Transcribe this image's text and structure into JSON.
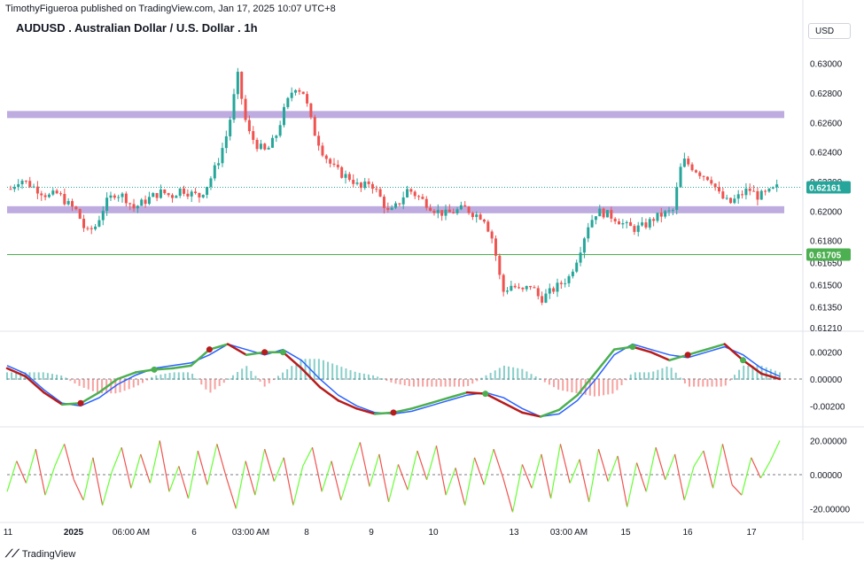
{
  "header": {
    "publisher": "TimothyFigueroa published on TradingView.com, Jan 17, 2025 10:07 UTC+8",
    "title": "AUDUSD . Australian Dollar / U.S. Dollar . 1h",
    "currency": "USD"
  },
  "footer": {
    "brand": "TradingView"
  },
  "colors": {
    "up": "#26a69a",
    "down": "#ef5350",
    "zone": "#b39ddb",
    "support_line": "#4caf50",
    "macd_fast": "#2962ff",
    "macd_signal_up": "#4caf50",
    "macd_signal_down": "#b71c1c",
    "osc_up": "#66ff33",
    "osc_down": "#ef5350",
    "price_label": "#26a69a"
  },
  "chart_data": [
    {
      "type": "candlestick",
      "pane": "price",
      "ylim": [
        0.6121,
        0.631
      ],
      "y_ticks": [
        "0.63000",
        "0.62800",
        "0.62600",
        "0.62400",
        "0.62200",
        "0.62000",
        "0.61800",
        "0.61650",
        "0.61500",
        "0.61350",
        "0.61210"
      ],
      "x_ticks": [
        "11",
        "2025",
        "06:00 AM",
        "6",
        "03:00 AM",
        "8",
        "9",
        "10",
        "13",
        "03:00 AM",
        "15",
        "16",
        "17"
      ],
      "close_path": [
        0.6215,
        0.6222,
        0.6218,
        0.6214,
        0.621,
        0.6212,
        0.6205,
        0.62,
        0.6185,
        0.619,
        0.6205,
        0.6212,
        0.621,
        0.6202,
        0.6206,
        0.621,
        0.6213,
        0.621,
        0.6215,
        0.6212,
        0.621,
        0.622,
        0.6235,
        0.6255,
        0.6292,
        0.6255,
        0.6245,
        0.624,
        0.625,
        0.627,
        0.6285,
        0.628,
        0.6255,
        0.624,
        0.623,
        0.6225,
        0.6222,
        0.6215,
        0.622,
        0.621,
        0.6198,
        0.6205,
        0.6215,
        0.621,
        0.6205,
        0.62,
        0.6198,
        0.62,
        0.6202,
        0.6198,
        0.6196,
        0.618,
        0.6145,
        0.615,
        0.6145,
        0.615,
        0.614,
        0.6145,
        0.615,
        0.6155,
        0.617,
        0.619,
        0.62,
        0.6198,
        0.6195,
        0.619,
        0.6188,
        0.619,
        0.6195,
        0.6198,
        0.62,
        0.6235,
        0.623,
        0.6225,
        0.6222,
        0.621,
        0.6205,
        0.621,
        0.6215,
        0.621,
        0.6212,
        0.6216
      ],
      "zones": [
        {
          "low": 0.6263,
          "high": 0.6266
        },
        {
          "low": 0.61985,
          "high": 0.62015
        }
      ],
      "lines": [
        {
          "value": 0.62161,
          "label": "0.62161",
          "style": "dotted"
        },
        {
          "value": 0.61705,
          "label": "0.61705",
          "style": "solid"
        }
      ],
      "last_price": 0.62161
    },
    {
      "type": "line",
      "pane": "macd",
      "ylim": [
        -0.0033,
        0.0033
      ],
      "y_ticks": [
        "0.00200",
        "0.00000",
        "-0.00200"
      ],
      "series": [
        {
          "values": [
            0.001,
            0.0004,
            -0.0008,
            -0.0018,
            -0.002,
            -0.0014,
            -0.0004,
            0.0003,
            0.0008,
            0.001,
            0.0012,
            0.0018,
            0.0026,
            0.0022,
            0.0018,
            0.0022,
            0.0014,
            0.0,
            -0.0012,
            -0.002,
            -0.0025,
            -0.0026,
            -0.0024,
            -0.002,
            -0.0016,
            -0.0012,
            -0.001,
            -0.0014,
            -0.0022,
            -0.0028,
            -0.0026,
            -0.0016,
            0.0,
            0.0018,
            0.0026,
            0.0022,
            0.0018,
            0.0016,
            0.002,
            0.0024,
            0.0018,
            0.0008,
            0.0002
          ]
        },
        {
          "values": [
            0.0008,
            0.0002,
            -0.001,
            -0.0019,
            -0.0018,
            -0.001,
            0.0,
            0.0005,
            0.0007,
            0.0008,
            0.001,
            0.0022,
            0.0026,
            0.0018,
            0.002,
            0.002,
            0.0008,
            -0.0006,
            -0.0016,
            -0.0022,
            -0.0026,
            -0.0025,
            -0.0022,
            -0.0018,
            -0.0014,
            -0.001,
            -0.0011,
            -0.0018,
            -0.0025,
            -0.0028,
            -0.0023,
            -0.0012,
            0.0005,
            0.0022,
            0.0024,
            0.002,
            0.0014,
            0.0018,
            0.0022,
            0.0026,
            0.0014,
            0.0004,
            0.0
          ]
        }
      ]
    },
    {
      "type": "line",
      "pane": "oscillator",
      "ylim": [
        -26,
        26
      ],
      "y_ticks": [
        "20.00000",
        "0.00000",
        "-20.00000"
      ],
      "series": [
        {
          "values": [
            -10,
            8,
            -5,
            15,
            -12,
            5,
            18,
            -3,
            -15,
            10,
            -18,
            2,
            16,
            -8,
            12,
            -5,
            20,
            -10,
            5,
            -14,
            14,
            -6,
            18,
            -2,
            -20,
            8,
            -12,
            15,
            -4,
            10,
            -18,
            5,
            16,
            -10,
            8,
            -15,
            3,
            19,
            -7,
            12,
            -16,
            6,
            -9,
            14,
            -3,
            17,
            -12,
            4,
            -18,
            10,
            -6,
            15,
            -2,
            -22,
            6,
            -8,
            12,
            -14,
            18,
            -5,
            9,
            -16,
            15,
            -4,
            11,
            -19,
            7,
            -10,
            16,
            -3,
            12,
            -15,
            5,
            14,
            -8,
            18,
            -6,
            -12,
            10,
            -2,
            8,
            20
          ]
        }
      ]
    }
  ]
}
